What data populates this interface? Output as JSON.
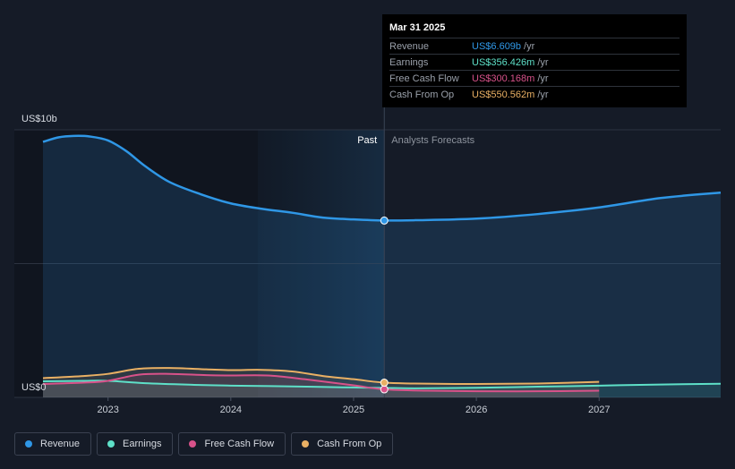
{
  "chart_data": {
    "type": "area",
    "y_unit_label_top": "US$10b",
    "y_unit_label_bottom": "US$0",
    "ylim": [
      0,
      10
    ],
    "xlim": [
      2022.47,
      2027.99
    ],
    "x_ticks": [
      {
        "value": 2023,
        "label": "2023"
      },
      {
        "value": 2024,
        "label": "2024"
      },
      {
        "value": 2025,
        "label": "2025"
      },
      {
        "value": 2026,
        "label": "2026"
      },
      {
        "value": 2027,
        "label": "2027"
      }
    ],
    "divider_x": 2025.25,
    "past_label": "Past",
    "forecast_label": "Analysts Forecasts",
    "series": [
      {
        "name": "Revenue",
        "color": "#2f97e6",
        "area": true,
        "points": [
          [
            2022.47,
            9.55
          ],
          [
            2022.6,
            9.72
          ],
          [
            2022.72,
            9.77
          ],
          [
            2022.85,
            9.75
          ],
          [
            2023.0,
            9.6
          ],
          [
            2023.15,
            9.2
          ],
          [
            2023.3,
            8.65
          ],
          [
            2023.5,
            8.05
          ],
          [
            2023.75,
            7.6
          ],
          [
            2024.0,
            7.25
          ],
          [
            2024.25,
            7.05
          ],
          [
            2024.5,
            6.9
          ],
          [
            2024.75,
            6.72
          ],
          [
            2025.0,
            6.65
          ],
          [
            2025.25,
            6.609
          ],
          [
            2025.5,
            6.62
          ],
          [
            2026.0,
            6.68
          ],
          [
            2026.5,
            6.85
          ],
          [
            2027.0,
            7.1
          ],
          [
            2027.5,
            7.45
          ],
          [
            2027.99,
            7.65
          ]
        ]
      },
      {
        "name": "Earnings",
        "color": "#5ee0c8",
        "area": true,
        "points": [
          [
            2022.47,
            0.6
          ],
          [
            2022.8,
            0.62
          ],
          [
            2023.0,
            0.62
          ],
          [
            2023.3,
            0.53
          ],
          [
            2023.7,
            0.47
          ],
          [
            2024.0,
            0.44
          ],
          [
            2024.5,
            0.41
          ],
          [
            2025.0,
            0.37
          ],
          [
            2025.25,
            0.356
          ],
          [
            2025.5,
            0.34
          ],
          [
            2026.0,
            0.36
          ],
          [
            2026.5,
            0.4
          ],
          [
            2027.0,
            0.44
          ],
          [
            2027.5,
            0.48
          ],
          [
            2027.99,
            0.51
          ]
        ]
      },
      {
        "name": "Free Cash Flow",
        "color": "#d8528a",
        "area": true,
        "points": [
          [
            2022.47,
            0.5
          ],
          [
            2022.8,
            0.55
          ],
          [
            2023.0,
            0.62
          ],
          [
            2023.25,
            0.85
          ],
          [
            2023.5,
            0.88
          ],
          [
            2023.8,
            0.83
          ],
          [
            2024.0,
            0.82
          ],
          [
            2024.3,
            0.82
          ],
          [
            2024.6,
            0.68
          ],
          [
            2025.0,
            0.45
          ],
          [
            2025.25,
            0.3
          ],
          [
            2025.6,
            0.25
          ],
          [
            2026.0,
            0.23
          ],
          [
            2026.5,
            0.23
          ],
          [
            2027.0,
            0.25
          ]
        ]
      },
      {
        "name": "Cash From Op",
        "color": "#e9b064",
        "area": true,
        "points": [
          [
            2022.47,
            0.72
          ],
          [
            2022.8,
            0.8
          ],
          [
            2023.0,
            0.88
          ],
          [
            2023.25,
            1.07
          ],
          [
            2023.5,
            1.1
          ],
          [
            2023.8,
            1.05
          ],
          [
            2024.0,
            1.02
          ],
          [
            2024.25,
            1.03
          ],
          [
            2024.5,
            0.97
          ],
          [
            2024.75,
            0.8
          ],
          [
            2025.0,
            0.68
          ],
          [
            2025.25,
            0.55
          ],
          [
            2025.5,
            0.52
          ],
          [
            2026.0,
            0.5
          ],
          [
            2026.5,
            0.52
          ],
          [
            2027.0,
            0.58
          ]
        ]
      }
    ]
  },
  "tooltip": {
    "date": "Mar 31 2025",
    "rows": [
      {
        "name": "Revenue",
        "value": "US$6.609b",
        "unit": "/yr",
        "color": "#2f97e6"
      },
      {
        "name": "Earnings",
        "value": "US$356.426m",
        "unit": "/yr",
        "color": "#5ee0c8"
      },
      {
        "name": "Free Cash Flow",
        "value": "US$300.168m",
        "unit": "/yr",
        "color": "#d8528a"
      },
      {
        "name": "Cash From Op",
        "value": "US$550.562m",
        "unit": "/yr",
        "color": "#e9b064"
      }
    ]
  },
  "legend": [
    {
      "label": "Revenue",
      "color": "#2f97e6"
    },
    {
      "label": "Earnings",
      "color": "#5ee0c8"
    },
    {
      "label": "Free Cash Flow",
      "color": "#d8528a"
    },
    {
      "label": "Cash From Op",
      "color": "#e9b064"
    }
  ]
}
